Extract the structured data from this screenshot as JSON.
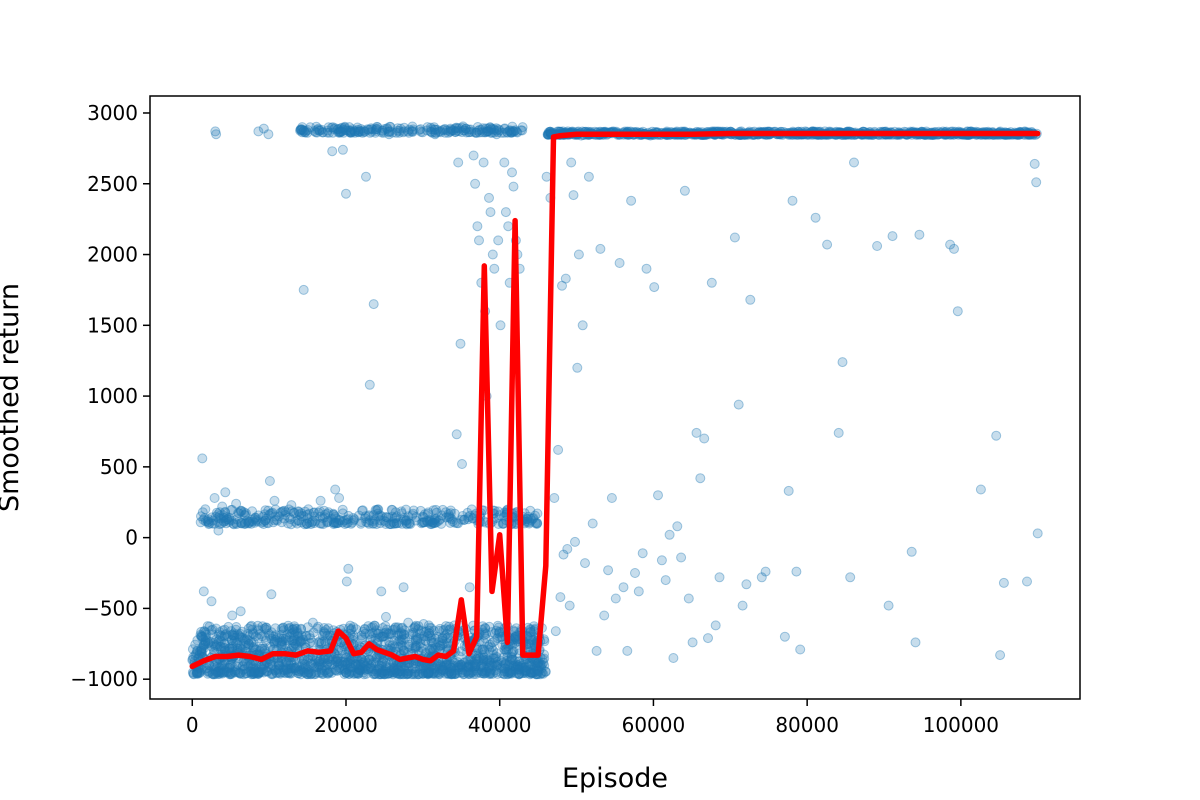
{
  "chart_data": {
    "type": "scatter",
    "title": "",
    "xlabel": "Episode",
    "ylabel": "Smoothed return",
    "xlim": [
      -5500,
      115500
    ],
    "ylim": [
      -1140,
      3120
    ],
    "x_ticks": [
      0,
      20000,
      40000,
      60000,
      80000,
      100000
    ],
    "y_ticks": [
      -1000,
      -500,
      0,
      500,
      1000,
      1500,
      2000,
      2500,
      3000
    ],
    "grid": false,
    "legend": "none",
    "colors": {
      "scatter": "#1f77b4",
      "line": "#ff0000"
    },
    "series": [
      {
        "kind": "scatter",
        "alpha": 0.25,
        "points": [
          [
            500,
            -900
          ],
          [
            900,
            -950
          ],
          [
            1300,
            560
          ],
          [
            1500,
            -380
          ],
          [
            1700,
            200
          ],
          [
            2100,
            130
          ],
          [
            2500,
            -450
          ],
          [
            2900,
            280
          ],
          [
            3000,
            2870
          ],
          [
            3100,
            2850
          ],
          [
            3400,
            50
          ],
          [
            3900,
            220
          ],
          [
            4300,
            320
          ],
          [
            4800,
            140
          ],
          [
            5200,
            -550
          ],
          [
            5700,
            240
          ],
          [
            6300,
            -520
          ],
          [
            6900,
            160
          ],
          [
            7300,
            100
          ],
          [
            7800,
            -650
          ],
          [
            8600,
            2870
          ],
          [
            9300,
            2890
          ],
          [
            9500,
            120
          ],
          [
            9900,
            2850
          ],
          [
            10100,
            400
          ],
          [
            10300,
            -400
          ],
          [
            10700,
            260
          ],
          [
            11300,
            150
          ],
          [
            12100,
            160
          ],
          [
            12900,
            230
          ],
          [
            13900,
            120
          ],
          [
            14300,
            2900
          ],
          [
            14500,
            1750
          ],
          [
            15100,
            200
          ],
          [
            15700,
            -600
          ],
          [
            16700,
            260
          ],
          [
            17600,
            110
          ],
          [
            18200,
            2730
          ],
          [
            18600,
            340
          ],
          [
            19100,
            280
          ],
          [
            19600,
            2740
          ],
          [
            19900,
            2880
          ],
          [
            20000,
            2430
          ],
          [
            20100,
            -310
          ],
          [
            20300,
            -220
          ],
          [
            21100,
            130
          ],
          [
            22100,
            190
          ],
          [
            22600,
            2550
          ],
          [
            22900,
            2880
          ],
          [
            23100,
            1080
          ],
          [
            23600,
            1650
          ],
          [
            24100,
            2900
          ],
          [
            24600,
            -380
          ],
          [
            25200,
            -560
          ],
          [
            25600,
            2850
          ],
          [
            26100,
            110
          ],
          [
            26600,
            150
          ],
          [
            27100,
            2890
          ],
          [
            27500,
            -350
          ],
          [
            28100,
            -600
          ],
          [
            29100,
            120
          ],
          [
            30100,
            -610
          ],
          [
            30600,
            2900
          ],
          [
            31100,
            -640
          ],
          [
            31600,
            2850
          ],
          [
            32100,
            120
          ],
          [
            32600,
            2880
          ],
          [
            33100,
            -680
          ],
          [
            33600,
            2890
          ],
          [
            34100,
            -620
          ],
          [
            34400,
            730
          ],
          [
            34600,
            2650
          ],
          [
            34900,
            1370
          ],
          [
            35100,
            520
          ],
          [
            35600,
            2890
          ],
          [
            35900,
            130
          ],
          [
            36100,
            -350
          ],
          [
            36600,
            2700
          ],
          [
            36800,
            2500
          ],
          [
            37100,
            2200
          ],
          [
            37300,
            2100
          ],
          [
            37600,
            1800
          ],
          [
            37900,
            2650
          ],
          [
            38100,
            1600
          ],
          [
            38300,
            1000
          ],
          [
            38600,
            2400
          ],
          [
            38800,
            2300
          ],
          [
            39100,
            2000
          ],
          [
            39300,
            1900
          ],
          [
            39600,
            2850
          ],
          [
            39800,
            2100
          ],
          [
            40100,
            1500
          ],
          [
            40300,
            -700
          ],
          [
            40600,
            2650
          ],
          [
            40800,
            2300
          ],
          [
            41100,
            2200
          ],
          [
            41300,
            1800
          ],
          [
            41600,
            2580
          ],
          [
            41800,
            2480
          ],
          [
            42100,
            2100
          ],
          [
            42300,
            2000
          ],
          [
            42600,
            1900
          ],
          [
            43100,
            130
          ],
          [
            43600,
            130
          ],
          [
            44100,
            120
          ],
          [
            44600,
            -880
          ],
          [
            45100,
            -880
          ],
          [
            45600,
            -860
          ],
          [
            46100,
            2550
          ],
          [
            46600,
            2400
          ],
          [
            47100,
            280
          ],
          [
            47300,
            -660
          ],
          [
            47600,
            620
          ],
          [
            47900,
            -420
          ],
          [
            48100,
            1780
          ],
          [
            48300,
            -120
          ],
          [
            48600,
            1830
          ],
          [
            48800,
            -80
          ],
          [
            49100,
            -480
          ],
          [
            49300,
            2650
          ],
          [
            49600,
            2420
          ],
          [
            49800,
            -30
          ],
          [
            50100,
            1200
          ],
          [
            50300,
            2000
          ],
          [
            50600,
            2840
          ],
          [
            50800,
            1500
          ],
          [
            51100,
            -180
          ],
          [
            51600,
            2550
          ],
          [
            52100,
            100
          ],
          [
            52600,
            -800
          ],
          [
            53100,
            2040
          ],
          [
            53600,
            -550
          ],
          [
            54100,
            -230
          ],
          [
            54600,
            280
          ],
          [
            55100,
            -430
          ],
          [
            55600,
            1940
          ],
          [
            56100,
            -350
          ],
          [
            56600,
            -800
          ],
          [
            57100,
            2380
          ],
          [
            57600,
            -250
          ],
          [
            58100,
            -380
          ],
          [
            58600,
            -110
          ],
          [
            59100,
            1900
          ],
          [
            59600,
            2840
          ],
          [
            60100,
            1770
          ],
          [
            60600,
            300
          ],
          [
            61100,
            -160
          ],
          [
            61600,
            -300
          ],
          [
            62100,
            20
          ],
          [
            62600,
            -850
          ],
          [
            63100,
            80
          ],
          [
            63600,
            -140
          ],
          [
            64100,
            2450
          ],
          [
            64600,
            -430
          ],
          [
            65100,
            -740
          ],
          [
            65600,
            740
          ],
          [
            66100,
            420
          ],
          [
            66600,
            700
          ],
          [
            67100,
            -710
          ],
          [
            67600,
            1800
          ],
          [
            68100,
            -620
          ],
          [
            68600,
            -280
          ],
          [
            70100,
            2850
          ],
          [
            70600,
            2120
          ],
          [
            71100,
            940
          ],
          [
            71600,
            -480
          ],
          [
            72100,
            -330
          ],
          [
            72600,
            1680
          ],
          [
            73100,
            2850
          ],
          [
            74100,
            -280
          ],
          [
            74600,
            -240
          ],
          [
            75100,
            2850
          ],
          [
            76100,
            2850
          ],
          [
            77100,
            -700
          ],
          [
            77600,
            330
          ],
          [
            78100,
            2380
          ],
          [
            78600,
            -240
          ],
          [
            79100,
            -790
          ],
          [
            80100,
            2850
          ],
          [
            81100,
            2260
          ],
          [
            82100,
            2850
          ],
          [
            82600,
            2070
          ],
          [
            83100,
            2850
          ],
          [
            84100,
            740
          ],
          [
            84600,
            1240
          ],
          [
            85100,
            2850
          ],
          [
            85600,
            -280
          ],
          [
            86100,
            2650
          ],
          [
            87100,
            2850
          ],
          [
            88100,
            2850
          ],
          [
            89100,
            2060
          ],
          [
            90100,
            2850
          ],
          [
            90600,
            -480
          ],
          [
            91100,
            2130
          ],
          [
            92100,
            2850
          ],
          [
            93100,
            2850
          ],
          [
            93600,
            -100
          ],
          [
            94100,
            -740
          ],
          [
            94600,
            2140
          ],
          [
            95100,
            2850
          ],
          [
            96100,
            2850
          ],
          [
            97100,
            2850
          ],
          [
            98100,
            2850
          ],
          [
            98600,
            2070
          ],
          [
            99100,
            2040
          ],
          [
            99600,
            1600
          ],
          [
            100100,
            2850
          ],
          [
            101100,
            2850
          ],
          [
            102100,
            2850
          ],
          [
            102600,
            340
          ],
          [
            103100,
            2850
          ],
          [
            104100,
            2850
          ],
          [
            104600,
            720
          ],
          [
            105100,
            -830
          ],
          [
            105600,
            -320
          ],
          [
            106100,
            2850
          ],
          [
            107100,
            2850
          ],
          [
            108100,
            2850
          ],
          [
            108600,
            -310
          ],
          [
            109100,
            2850
          ],
          [
            109600,
            2640
          ],
          [
            109800,
            2510
          ],
          [
            110000,
            30
          ]
        ],
        "clusters": [
          {
            "x": [
              0,
              46000
            ],
            "y": [
              -965,
              -620
            ],
            "count": 1600
          },
          {
            "x": [
              1000,
              45000
            ],
            "y": [
              95,
              200
            ],
            "count": 380
          },
          {
            "x": [
              14000,
              43000
            ],
            "y": [
              2860,
              2905
            ],
            "count": 220
          },
          {
            "x": [
              46000,
              110000
            ],
            "y": [
              2845,
              2870
            ],
            "count": 900
          }
        ]
      },
      {
        "kind": "line",
        "x": [
          0,
          1500,
          3000,
          4500,
          6000,
          7500,
          9000,
          10500,
          12000,
          13500,
          15000,
          16500,
          18000,
          19000,
          20000,
          21000,
          22000,
          23000,
          24000,
          25000,
          26000,
          27000,
          28000,
          29000,
          30000,
          31000,
          32000,
          33000,
          34000,
          35000,
          36000,
          37000,
          38000,
          39000,
          40000,
          41000,
          42000,
          43000,
          44000,
          45000,
          46000,
          47000,
          48000,
          50000,
          55000,
          60000,
          65000,
          70000,
          80000,
          90000,
          100000,
          110000
        ],
        "y": [
          -910,
          -870,
          -840,
          -840,
          -830,
          -840,
          -860,
          -820,
          -820,
          -830,
          -800,
          -810,
          -800,
          -660,
          -710,
          -820,
          -810,
          -750,
          -790,
          -810,
          -830,
          -860,
          -850,
          -840,
          -860,
          -870,
          -830,
          -840,
          -800,
          -440,
          -820,
          -700,
          1920,
          -380,
          20,
          -740,
          2240,
          -830,
          -830,
          -830,
          -200,
          2830,
          2840,
          2850,
          2850,
          2850,
          2850,
          2855,
          2855,
          2855,
          2855,
          2855
        ]
      }
    ]
  }
}
